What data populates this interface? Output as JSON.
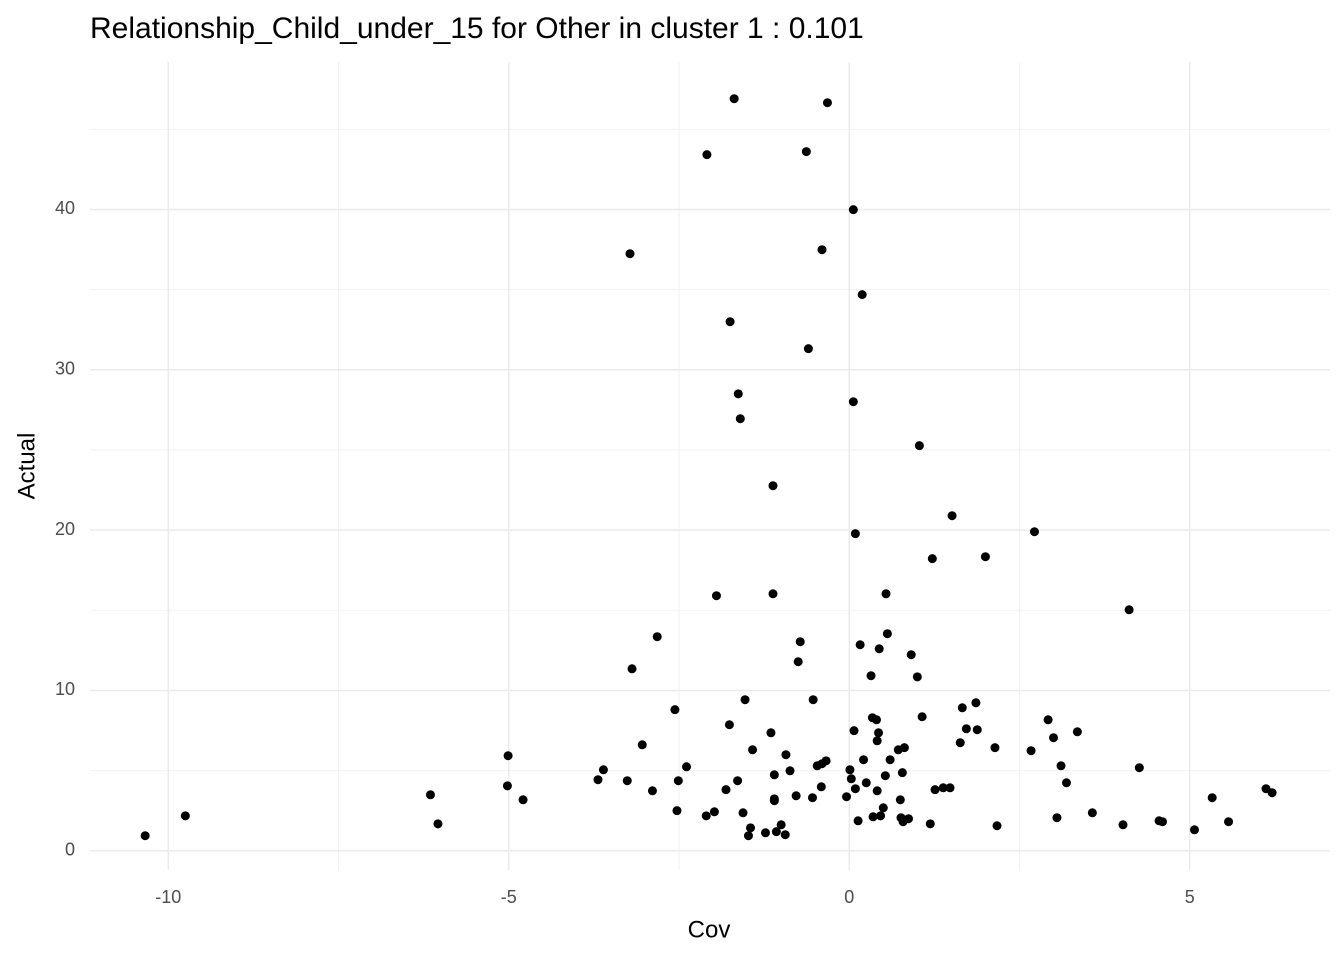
{
  "chart_data": {
    "type": "scatter",
    "title": "Relationship_Child_under_15 for Other in cluster 1 : 0.101",
    "x_label": "Cov",
    "y_label": "Actual",
    "color": "#000000",
    "xlim": [
      -11.15,
      7.06
    ],
    "ylim": [
      -1.2,
      49.2
    ],
    "xticks": [
      -10,
      -5,
      0,
      5
    ],
    "yticks": [
      0,
      10,
      20,
      30,
      40
    ],
    "x_minor_ticks": [
      -7.5,
      -2.5,
      2.5
    ],
    "y_minor_ticks": [
      5,
      15,
      25,
      35,
      45
    ],
    "grid": true,
    "x": [
      -10.34,
      -9.75,
      -6.15,
      -6.04,
      -5.01,
      -5.02,
      -4.79,
      -3.69,
      -3.61,
      -3.26,
      -3.22,
      -3.19,
      -3.04,
      -2.89,
      -2.82,
      -2.56,
      -2.51,
      -2.53,
      -2.39,
      -2.1,
      -2.09,
      -1.98,
      -1.95,
      -1.81,
      -1.76,
      -1.75,
      -1.69,
      -1.64,
      -1.63,
      -1.6,
      -1.56,
      -1.53,
      -1.48,
      -1.45,
      -1.42,
      -1.23,
      -1.15,
      -1.12,
      -1.12,
      -1.1,
      -1.1,
      -1.1,
      -1.07,
      -1.0,
      -0.94,
      -0.93,
      -0.87,
      -0.78,
      -0.75,
      -0.72,
      -0.63,
      -0.6,
      -0.54,
      -0.53,
      -0.47,
      -0.41,
      -0.4,
      -0.4,
      -0.34,
      -0.32,
      -0.04,
      0.01,
      0.03,
      0.06,
      0.06,
      0.07,
      0.09,
      0.09,
      0.13,
      0.16,
      0.19,
      0.21,
      0.25,
      0.32,
      0.34,
      0.35,
      0.4,
      0.41,
      0.41,
      0.43,
      0.44,
      0.46,
      0.5,
      0.53,
      0.54,
      0.56,
      0.6,
      0.72,
      0.75,
      0.76,
      0.78,
      0.79,
      0.81,
      0.87,
      0.91,
      1.0,
      1.03,
      1.07,
      1.19,
      1.22,
      1.26,
      1.38,
      1.48,
      1.51,
      1.63,
      1.66,
      1.72,
      1.86,
      1.88,
      2.0,
      2.14,
      2.17,
      2.67,
      2.72,
      2.92,
      3.0,
      3.05,
      3.11,
      3.19,
      3.35,
      3.57,
      4.02,
      4.11,
      4.26,
      4.55,
      4.6,
      5.07,
      5.33,
      5.57,
      6.12,
      6.21
    ],
    "y": [
      0.94,
      2.18,
      3.49,
      1.68,
      5.93,
      4.05,
      3.18,
      4.43,
      5.05,
      4.37,
      37.24,
      11.35,
      6.61,
      3.74,
      13.35,
      8.8,
      4.37,
      2.5,
      5.24,
      2.18,
      43.42,
      2.43,
      15.91,
      3.81,
      7.86,
      33.0,
      46.91,
      4.37,
      28.5,
      26.95,
      2.37,
      9.42,
      0.94,
      1.43,
      6.3,
      1.12,
      7.36,
      16.03,
      22.77,
      4.74,
      3.24,
      3.12,
      1.19,
      1.62,
      1.0,
      5.99,
      4.99,
      3.43,
      11.79,
      13.04,
      43.61,
      31.32,
      3.31,
      9.42,
      5.3,
      3.99,
      37.49,
      5.43,
      5.61,
      46.66,
      3.37,
      5.05,
      4.49,
      39.99,
      28.01,
      7.49,
      19.78,
      3.87,
      1.87,
      12.85,
      34.69,
      5.68,
      4.24,
      10.92,
      8.3,
      2.12,
      8.17,
      6.86,
      3.74,
      7.36,
      12.6,
      2.18,
      2.68,
      4.68,
      16.03,
      13.54,
      5.68,
      6.3,
      3.18,
      2.06,
      4.87,
      1.81,
      6.43,
      2.0,
      12.23,
      10.85,
      25.27,
      8.36,
      1.68,
      18.22,
      3.81,
      3.93,
      3.93,
      20.9,
      6.74,
      8.92,
      7.61,
      9.23,
      7.55,
      18.34,
      6.43,
      1.56,
      6.24,
      19.9,
      8.17,
      7.05,
      2.06,
      5.3,
      4.24,
      7.42,
      2.37,
      1.62,
      15.03,
      5.18,
      1.87,
      1.81,
      1.31,
      3.31,
      1.81,
      3.87,
      3.62
    ]
  }
}
